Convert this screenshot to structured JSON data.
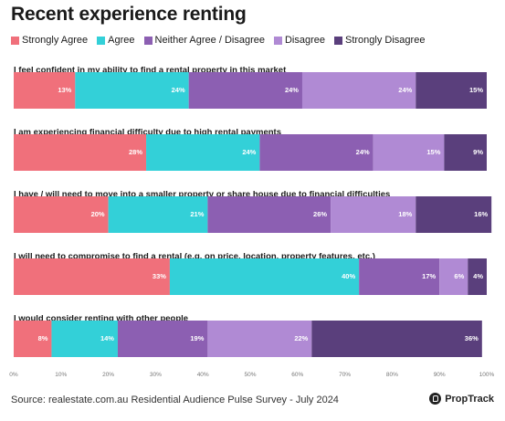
{
  "title": "Recent experience renting",
  "source": "Source: realestate.com.au Residential Audience Pulse Survey - July 2024",
  "brand": "PropTrack",
  "chart_data": {
    "type": "bar",
    "orientation": "horizontal",
    "stacked": true,
    "title": "Recent experience renting",
    "xlim": [
      0,
      100
    ],
    "x_ticks": [
      "0%",
      "10%",
      "20%",
      "30%",
      "40%",
      "50%",
      "60%",
      "70%",
      "80%",
      "90%",
      "100%"
    ],
    "grid": false,
    "legend_position": "top-left",
    "categories": [
      "I feel confident in my ability to find a rental property in this market",
      "I am experiencing financial difficulty due to high rental payments",
      "I have / will need to move into a smaller property or share house due to financial difficulties",
      "I will need to compromise to find a rental (e.g. on price, location, property features, etc.)",
      "I would consider renting with other people"
    ],
    "series": [
      {
        "name": "Strongly Agree",
        "color": "#f0707b",
        "values": [
          13,
          28,
          20,
          33,
          8
        ],
        "labels": [
          "13%",
          "28%",
          "20%",
          "33%",
          "8%"
        ]
      },
      {
        "name": "Agree",
        "color": "#33d0d8",
        "values": [
          24,
          24,
          21,
          40,
          14
        ],
        "labels": [
          "24%",
          "24%",
          "21%",
          "40%",
          "14%"
        ]
      },
      {
        "name": "Neither Agree / Disagree",
        "color": "#8c5fb2",
        "values": [
          24,
          24,
          26,
          17,
          19
        ],
        "labels": [
          "24%",
          "24%",
          "26%",
          "17%",
          "19%"
        ]
      },
      {
        "name": "Disagree",
        "color": "#b08ad4",
        "values": [
          24,
          15,
          18,
          6,
          22
        ],
        "labels": [
          "24%",
          "15%",
          "18%",
          "6%",
          "22%"
        ]
      },
      {
        "name": "Strongly Disagree",
        "color": "#5a3f7c",
        "values": [
          15,
          9,
          16,
          4,
          36
        ],
        "labels": [
          "15%",
          "9%",
          "16%",
          "4%",
          "36%"
        ]
      }
    ]
  }
}
